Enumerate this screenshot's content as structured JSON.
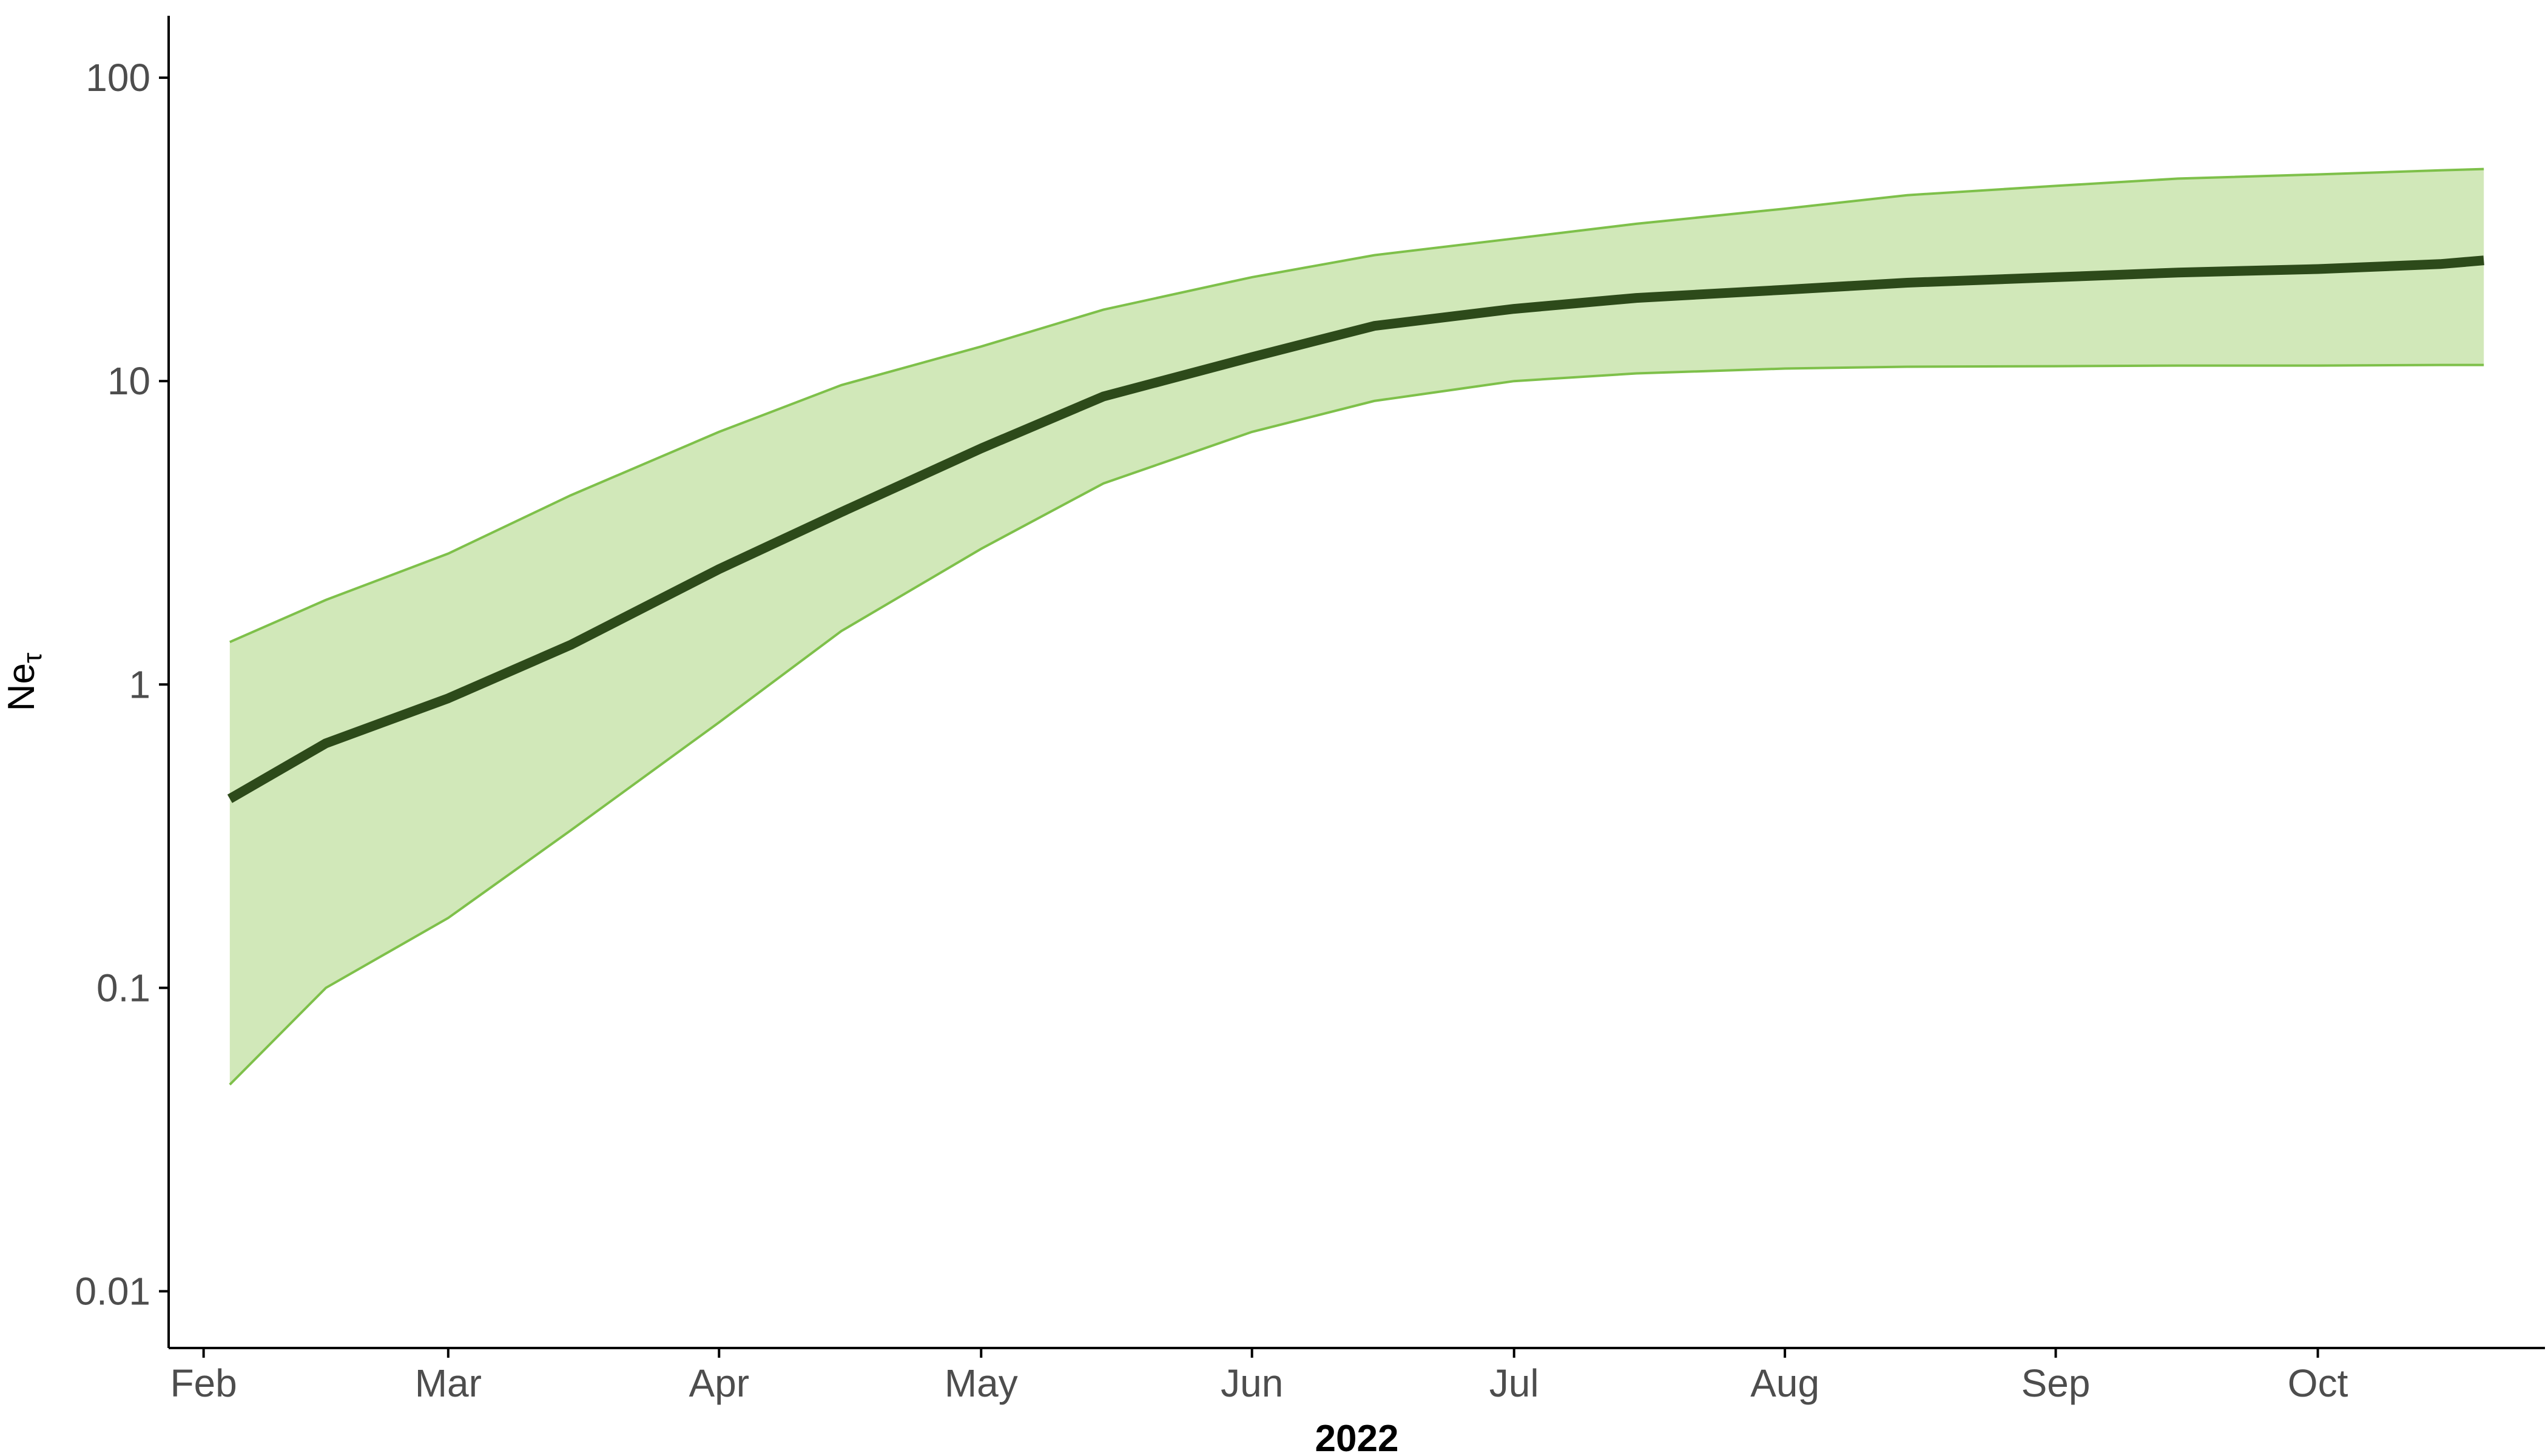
{
  "chart_data": {
    "type": "area",
    "title": "",
    "xlabel": "2022",
    "ylabel": {
      "main": "Ne",
      "sub": "τ"
    },
    "y_scale": "log10",
    "ylim": [
      0.0065,
      160
    ],
    "xlim": [
      "2022-01-28",
      "2022-10-27"
    ],
    "y_ticks": [
      {
        "value": 0.01,
        "label": "0.01"
      },
      {
        "value": 0.1,
        "label": "0.1"
      },
      {
        "value": 1,
        "label": "1"
      },
      {
        "value": 10,
        "label": "10"
      },
      {
        "value": 100,
        "label": "100"
      }
    ],
    "x_ticks": [
      {
        "date": "2022-02-01",
        "label": "Feb"
      },
      {
        "date": "2022-03-01",
        "label": "Mar"
      },
      {
        "date": "2022-04-01",
        "label": "Apr"
      },
      {
        "date": "2022-05-01",
        "label": "May"
      },
      {
        "date": "2022-06-01",
        "label": "Jun"
      },
      {
        "date": "2022-07-01",
        "label": "Jul"
      },
      {
        "date": "2022-08-01",
        "label": "Aug"
      },
      {
        "date": "2022-09-01",
        "label": "Sep"
      },
      {
        "date": "2022-10-01",
        "label": "Oct"
      }
    ],
    "grid": false,
    "legend": "none",
    "colors": {
      "median_line": "#2d4a1a",
      "ribbon_fill": "#d1e8b9",
      "ribbon_border": "#7ec04a"
    },
    "x": [
      "2022-02-04",
      "2022-02-15",
      "2022-03-01",
      "2022-03-15",
      "2022-04-01",
      "2022-04-15",
      "2022-05-01",
      "2022-05-15",
      "2022-06-01",
      "2022-06-15",
      "2022-07-01",
      "2022-07-15",
      "2022-08-01",
      "2022-08-15",
      "2022-09-01",
      "2022-09-15",
      "2022-10-01",
      "2022-10-15",
      "2022-10-20"
    ],
    "series": [
      {
        "role": "median",
        "values": [
          0.42,
          0.64,
          0.9,
          1.35,
          2.4,
          3.7,
          6.0,
          8.9,
          12.0,
          15.2,
          17.3,
          18.8,
          20.0,
          21.1,
          22.0,
          22.8,
          23.4,
          24.3,
          25.0
        ]
      },
      {
        "role": "lower",
        "values": [
          0.048,
          0.1,
          0.17,
          0.33,
          0.75,
          1.5,
          2.8,
          4.6,
          6.8,
          8.6,
          10.0,
          10.6,
          11.0,
          11.15,
          11.2,
          11.25,
          11.25,
          11.3,
          11.3
        ]
      },
      {
        "role": "upper",
        "values": [
          1.38,
          1.9,
          2.7,
          4.2,
          6.8,
          9.7,
          13.0,
          17.2,
          22.0,
          26.0,
          29.5,
          33.0,
          37.0,
          41.0,
          44.0,
          46.5,
          48.0,
          49.5,
          50.0
        ]
      }
    ]
  }
}
